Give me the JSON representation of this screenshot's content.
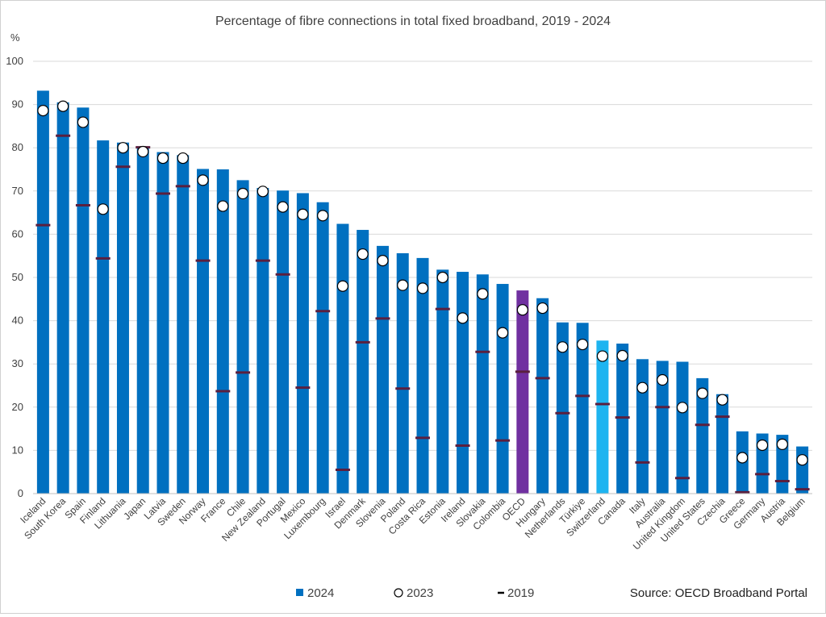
{
  "chart_data": {
    "type": "bar",
    "title": "Percentage of fibre connections in total fixed broadband, 2019 - 2024",
    "ylabel": "%",
    "ylim": [
      0,
      100
    ],
    "yticks": [
      0,
      10,
      20,
      30,
      40,
      50,
      60,
      70,
      80,
      90,
      100
    ],
    "grid": true,
    "legend_position": "bottom",
    "source": "Source: OECD Broadband Portal",
    "categories": [
      "Iceland",
      "South Korea",
      "Spain",
      "Finland",
      "Lithuania",
      "Japan",
      "Latvia",
      "Sweden",
      "Norway",
      "France",
      "Chile",
      "New Zealand",
      "Portugal",
      "Mexico",
      "Luxembourg",
      "Israel",
      "Denmark",
      "Slovenia",
      "Poland",
      "Costa Rica",
      "Estonia",
      "Ireland",
      "Slovakia",
      "Colombia",
      "OECD",
      "Hungary",
      "Netherlands",
      "Türkiye",
      "Switzerland",
      "Canada",
      "Italy",
      "Australia",
      "United Kingdom",
      "United States",
      "Czechia",
      "Greece",
      "Germany",
      "Austria",
      "Belgium"
    ],
    "highlight": {
      "OECD": "#7030a0",
      "Switzerland": "#1eb4f0"
    },
    "series": [
      {
        "name": "2024",
        "kind": "bar",
        "color": "#0070c0",
        "values": [
          93.2,
          90.5,
          89.3,
          81.7,
          81.2,
          80.3,
          79.0,
          78.3,
          75.1,
          75.0,
          72.5,
          70.7,
          70.1,
          69.5,
          67.4,
          62.4,
          61.0,
          57.3,
          55.6,
          54.5,
          51.8,
          51.3,
          50.7,
          48.5,
          47.0,
          45.2,
          39.6,
          39.5,
          35.4,
          34.7,
          31.1,
          30.7,
          30.5,
          26.7,
          23.0,
          14.4,
          13.9,
          13.6,
          10.9
        ]
      },
      {
        "name": "2023",
        "kind": "marker-circle",
        "color": "#ffffff",
        "values": [
          88.6,
          89.6,
          85.9,
          65.8,
          80.0,
          79.1,
          77.6,
          77.6,
          72.5,
          66.5,
          69.4,
          69.9,
          66.3,
          64.6,
          64.3,
          48.0,
          55.4,
          53.9,
          48.2,
          47.5,
          50.0,
          40.6,
          46.2,
          37.2,
          42.5,
          42.9,
          33.9,
          34.5,
          31.8,
          31.9,
          24.5,
          26.3,
          19.9,
          23.2,
          21.7,
          8.3,
          11.2,
          11.4,
          7.8
        ]
      },
      {
        "name": "2019",
        "kind": "marker-dash",
        "color": "#5a1f3f",
        "values": [
          62.1,
          82.8,
          66.7,
          54.4,
          75.6,
          80.1,
          69.4,
          71.1,
          53.9,
          23.7,
          28.0,
          53.9,
          50.7,
          24.5,
          42.2,
          5.5,
          35.0,
          40.5,
          24.3,
          12.9,
          42.7,
          11.1,
          32.8,
          12.3,
          28.2,
          26.7,
          18.6,
          22.6,
          20.7,
          17.6,
          7.2,
          20.0,
          3.6,
          15.9,
          17.8,
          0.3,
          4.5,
          2.9,
          1.0
        ]
      }
    ]
  }
}
